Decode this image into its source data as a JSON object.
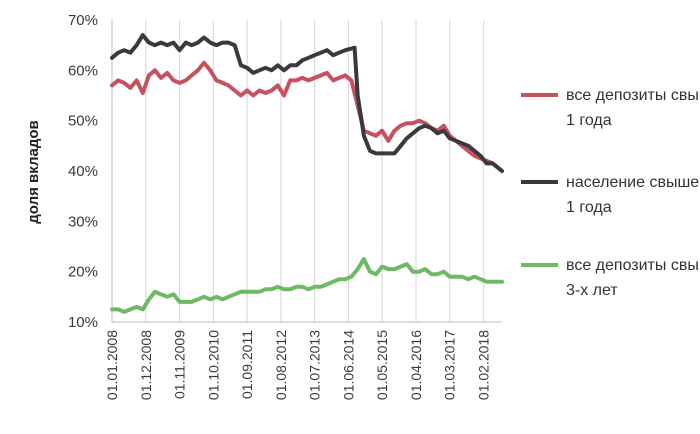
{
  "chart_data": {
    "type": "line",
    "xlabel": "",
    "ylabel": "доля вкладов",
    "ylim": [
      10,
      70
    ],
    "yticks": [
      "10%",
      "20%",
      "30%",
      "40%",
      "50%",
      "60%",
      "70%"
    ],
    "ytick_values": [
      10,
      20,
      30,
      40,
      50,
      60,
      70
    ],
    "xlim": [
      "2008-01-01",
      "2018-08-01"
    ],
    "x_tick_labels": [
      "01.01.2008",
      "01.12.2008",
      "01.11.2009",
      "01.10.2010",
      "01.09.2011",
      "01.08.2012",
      "01.07.2013",
      "01.06.2014",
      "01.05.2015",
      "01.04.2016",
      "01.03.2017",
      "01.02.2018"
    ],
    "x_tick_dates": [
      "2008-01-01",
      "2008-12-01",
      "2009-11-01",
      "2010-10-01",
      "2011-09-01",
      "2012-08-01",
      "2013-07-01",
      "2014-06-01",
      "2015-05-01",
      "2016-04-01",
      "2017-03-01",
      "2018-02-01"
    ],
    "grid": "vertical",
    "legend_position": "right",
    "series": [
      {
        "name": "все депозиты свыше 1 года",
        "color": "#c8515f",
        "points": [
          [
            "2008-01-01",
            57
          ],
          [
            "2008-03-01",
            58
          ],
          [
            "2008-05-01",
            57.5
          ],
          [
            "2008-07-01",
            56.5
          ],
          [
            "2008-09-01",
            58
          ],
          [
            "2008-11-01",
            55.5
          ],
          [
            "2009-01-01",
            59
          ],
          [
            "2009-03-01",
            60
          ],
          [
            "2009-05-01",
            58.5
          ],
          [
            "2009-07-01",
            59.5
          ],
          [
            "2009-09-01",
            58
          ],
          [
            "2009-11-01",
            57.5
          ],
          [
            "2010-01-01",
            58
          ],
          [
            "2010-03-01",
            59
          ],
          [
            "2010-05-01",
            60
          ],
          [
            "2010-07-01",
            61.5
          ],
          [
            "2010-09-01",
            60
          ],
          [
            "2010-11-01",
            58
          ],
          [
            "2011-01-01",
            57.5
          ],
          [
            "2011-03-01",
            57
          ],
          [
            "2011-05-01",
            56
          ],
          [
            "2011-07-01",
            55
          ],
          [
            "2011-09-01",
            56
          ],
          [
            "2011-11-01",
            55
          ],
          [
            "2012-01-01",
            56
          ],
          [
            "2012-03-01",
            55.5
          ],
          [
            "2012-05-01",
            56
          ],
          [
            "2012-07-01",
            57
          ],
          [
            "2012-09-01",
            55
          ],
          [
            "2012-11-01",
            58
          ],
          [
            "2013-01-01",
            58
          ],
          [
            "2013-03-01",
            58.5
          ],
          [
            "2013-05-01",
            58
          ],
          [
            "2013-07-01",
            58.5
          ],
          [
            "2013-09-01",
            59
          ],
          [
            "2013-11-01",
            59.5
          ],
          [
            "2014-01-01",
            58
          ],
          [
            "2014-03-01",
            58.5
          ],
          [
            "2014-05-01",
            59
          ],
          [
            "2014-07-01",
            58
          ],
          [
            "2014-09-01",
            53
          ],
          [
            "2014-11-01",
            48
          ],
          [
            "2015-01-01",
            47.5
          ],
          [
            "2015-03-01",
            47
          ],
          [
            "2015-05-01",
            48
          ],
          [
            "2015-07-01",
            46
          ],
          [
            "2015-09-01",
            48
          ],
          [
            "2015-11-01",
            49
          ],
          [
            "2016-01-01",
            49.5
          ],
          [
            "2016-03-01",
            49.5
          ],
          [
            "2016-05-01",
            50
          ],
          [
            "2016-07-01",
            49.5
          ],
          [
            "2016-09-01",
            48.5
          ],
          [
            "2016-11-01",
            48
          ],
          [
            "2017-01-01",
            49
          ],
          [
            "2017-03-01",
            47
          ],
          [
            "2017-05-01",
            46
          ],
          [
            "2017-07-01",
            45
          ],
          [
            "2017-09-01",
            44
          ],
          [
            "2017-11-01",
            43
          ],
          [
            "2018-01-01",
            42.5
          ],
          [
            "2018-03-01",
            42
          ],
          [
            "2018-05-01",
            41.5
          ],
          [
            "2018-08-01",
            40
          ]
        ]
      },
      {
        "name": "население свыше 1 года",
        "color": "#3a3a3e",
        "points": [
          [
            "2008-01-01",
            62.5
          ],
          [
            "2008-03-01",
            63.5
          ],
          [
            "2008-05-01",
            64
          ],
          [
            "2008-07-01",
            63.5
          ],
          [
            "2008-09-01",
            65
          ],
          [
            "2008-11-01",
            67
          ],
          [
            "2009-01-01",
            65.5
          ],
          [
            "2009-03-01",
            65
          ],
          [
            "2009-05-01",
            65.5
          ],
          [
            "2009-07-01",
            65
          ],
          [
            "2009-09-01",
            65.5
          ],
          [
            "2009-11-01",
            64
          ],
          [
            "2010-01-01",
            65.5
          ],
          [
            "2010-03-01",
            65
          ],
          [
            "2010-05-01",
            65.5
          ],
          [
            "2010-07-01",
            66.5
          ],
          [
            "2010-09-01",
            65.5
          ],
          [
            "2010-11-01",
            65
          ],
          [
            "2011-01-01",
            65.5
          ],
          [
            "2011-03-01",
            65.5
          ],
          [
            "2011-05-01",
            65
          ],
          [
            "2011-07-01",
            61
          ],
          [
            "2011-09-01",
            60.5
          ],
          [
            "2011-11-01",
            59.5
          ],
          [
            "2012-01-01",
            60
          ],
          [
            "2012-03-01",
            60.5
          ],
          [
            "2012-05-01",
            60
          ],
          [
            "2012-07-01",
            61
          ],
          [
            "2012-09-01",
            60
          ],
          [
            "2012-11-01",
            61
          ],
          [
            "2013-01-01",
            61
          ],
          [
            "2013-03-01",
            62
          ],
          [
            "2013-05-01",
            62.5
          ],
          [
            "2013-07-01",
            63
          ],
          [
            "2013-09-01",
            63.5
          ],
          [
            "2013-11-01",
            64
          ],
          [
            "2014-01-01",
            63
          ],
          [
            "2014-03-01",
            63.5
          ],
          [
            "2014-05-01",
            64
          ],
          [
            "2014-08-01",
            64.5
          ],
          [
            "2014-09-01",
            55
          ],
          [
            "2014-11-01",
            47
          ],
          [
            "2015-01-01",
            44
          ],
          [
            "2015-03-01",
            43.5
          ],
          [
            "2015-05-01",
            43.5
          ],
          [
            "2015-07-01",
            43.5
          ],
          [
            "2015-09-01",
            43.5
          ],
          [
            "2015-11-01",
            45
          ],
          [
            "2016-01-01",
            46.5
          ],
          [
            "2016-03-01",
            47.5
          ],
          [
            "2016-05-01",
            48.5
          ],
          [
            "2016-07-01",
            49
          ],
          [
            "2016-09-01",
            48.5
          ],
          [
            "2016-11-01",
            47.5
          ],
          [
            "2017-01-01",
            48
          ],
          [
            "2017-03-01",
            46.5
          ],
          [
            "2017-05-01",
            46
          ],
          [
            "2017-07-01",
            45.5
          ],
          [
            "2017-09-01",
            45
          ],
          [
            "2017-11-01",
            44
          ],
          [
            "2018-01-01",
            43
          ],
          [
            "2018-03-01",
            41.5
          ],
          [
            "2018-05-01",
            41.5
          ],
          [
            "2018-08-01",
            40
          ]
        ]
      },
      {
        "name": "все депозиты свыше 3-х лет",
        "color": "#6cbb62",
        "points": [
          [
            "2008-01-01",
            12.5
          ],
          [
            "2008-03-01",
            12.5
          ],
          [
            "2008-05-01",
            12
          ],
          [
            "2008-07-01",
            12.5
          ],
          [
            "2008-09-01",
            13
          ],
          [
            "2008-11-01",
            12.5
          ],
          [
            "2009-01-01",
            14.5
          ],
          [
            "2009-03-01",
            16
          ],
          [
            "2009-05-01",
            15.5
          ],
          [
            "2009-07-01",
            15
          ],
          [
            "2009-09-01",
            15.5
          ],
          [
            "2009-11-01",
            14
          ],
          [
            "2010-01-01",
            14
          ],
          [
            "2010-03-01",
            14
          ],
          [
            "2010-05-01",
            14.5
          ],
          [
            "2010-07-01",
            15
          ],
          [
            "2010-09-01",
            14.5
          ],
          [
            "2010-11-01",
            15
          ],
          [
            "2011-01-01",
            14.5
          ],
          [
            "2011-03-01",
            15
          ],
          [
            "2011-05-01",
            15.5
          ],
          [
            "2011-07-01",
            16
          ],
          [
            "2011-09-01",
            16
          ],
          [
            "2011-11-01",
            16
          ],
          [
            "2012-01-01",
            16
          ],
          [
            "2012-03-01",
            16.5
          ],
          [
            "2012-05-01",
            16.5
          ],
          [
            "2012-07-01",
            17
          ],
          [
            "2012-09-01",
            16.5
          ],
          [
            "2012-11-01",
            16.5
          ],
          [
            "2013-01-01",
            17
          ],
          [
            "2013-03-01",
            17
          ],
          [
            "2013-05-01",
            16.5
          ],
          [
            "2013-07-01",
            17
          ],
          [
            "2013-09-01",
            17
          ],
          [
            "2013-11-01",
            17.5
          ],
          [
            "2014-01-01",
            18
          ],
          [
            "2014-03-01",
            18.5
          ],
          [
            "2014-05-01",
            18.5
          ],
          [
            "2014-07-01",
            19
          ],
          [
            "2014-09-01",
            20.5
          ],
          [
            "2014-11-01",
            22.5
          ],
          [
            "2015-01-01",
            20
          ],
          [
            "2015-03-01",
            19.5
          ],
          [
            "2015-05-01",
            21
          ],
          [
            "2015-07-01",
            20.5
          ],
          [
            "2015-09-01",
            20.5
          ],
          [
            "2015-11-01",
            21
          ],
          [
            "2016-01-01",
            21.5
          ],
          [
            "2016-03-01",
            20
          ],
          [
            "2016-05-01",
            20
          ],
          [
            "2016-07-01",
            20.5
          ],
          [
            "2016-09-01",
            19.5
          ],
          [
            "2016-11-01",
            19.5
          ],
          [
            "2017-01-01",
            20
          ],
          [
            "2017-03-01",
            19
          ],
          [
            "2017-05-01",
            19
          ],
          [
            "2017-07-01",
            19
          ],
          [
            "2017-09-01",
            18.5
          ],
          [
            "2017-11-01",
            19
          ],
          [
            "2018-01-01",
            18.5
          ],
          [
            "2018-03-01",
            18
          ],
          [
            "2018-05-01",
            18
          ],
          [
            "2018-08-01",
            18
          ]
        ]
      }
    ]
  }
}
